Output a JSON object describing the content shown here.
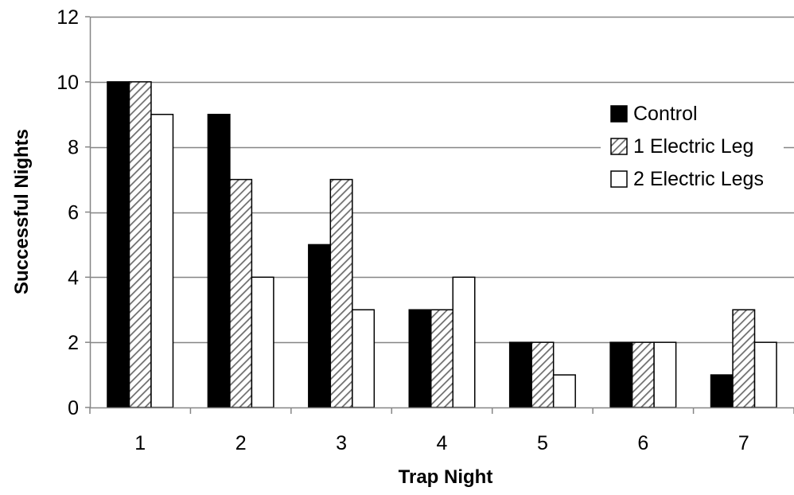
{
  "chart_data": {
    "type": "bar",
    "title": "",
    "xlabel": "Trap Night",
    "ylabel": "Successful Nights",
    "categories": [
      "1",
      "2",
      "3",
      "4",
      "5",
      "6",
      "7"
    ],
    "series": [
      {
        "name": "Control",
        "values": [
          10,
          9,
          5,
          3,
          2,
          2,
          1
        ],
        "fill": "solid",
        "color": "#000000"
      },
      {
        "name": "1 Electric Leg",
        "values": [
          10,
          7,
          7,
          3,
          2,
          2,
          3
        ],
        "fill": "hatched",
        "color": "#000000"
      },
      {
        "name": "2 Electric Legs",
        "values": [
          9,
          4,
          3,
          4,
          1,
          2,
          2
        ],
        "fill": "empty",
        "color": "#ffffff"
      }
    ],
    "ylim": [
      0,
      12
    ],
    "yticks": [
      0,
      2,
      4,
      6,
      8,
      10,
      12
    ],
    "grid": true,
    "grid_color": "#868686",
    "legend_position": "right"
  }
}
